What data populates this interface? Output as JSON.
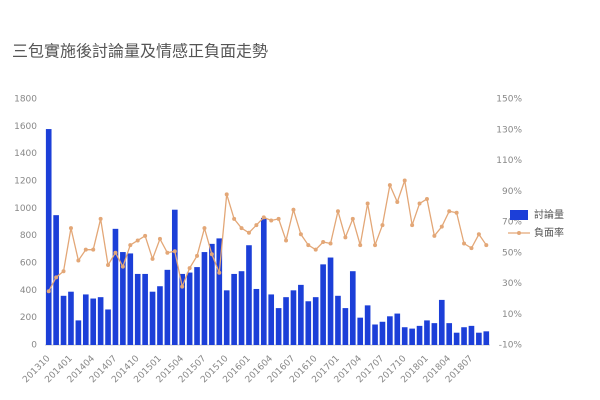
{
  "chart_data": {
    "type": "bar",
    "title": "三包實施後討論量及情感正負面走勢",
    "categories": [
      "201310",
      null,
      null,
      "201401",
      null,
      null,
      "201404",
      null,
      null,
      "201407",
      null,
      null,
      "201410",
      null,
      null,
      "201501",
      null,
      null,
      "201504",
      null,
      null,
      "201507",
      null,
      null,
      "201510",
      null,
      null,
      "201601",
      null,
      null,
      "201604",
      null,
      null,
      "201607",
      null,
      null,
      "201610",
      null,
      null,
      "201701",
      null,
      null,
      "201704",
      null,
      null,
      "201707",
      null,
      null,
      "201710",
      null,
      null,
      "201801",
      null,
      null,
      "201804",
      null,
      null,
      "201807",
      null,
      null
    ],
    "series": [
      {
        "name": "討論量",
        "type": "bar",
        "color": "#1c3fd8",
        "values": [
          1580,
          950,
          360,
          390,
          180,
          370,
          340,
          350,
          260,
          850,
          680,
          670,
          520,
          520,
          390,
          430,
          550,
          990,
          520,
          530,
          570,
          680,
          740,
          780,
          400,
          520,
          540,
          730,
          410,
          930,
          370,
          270,
          350,
          400,
          440,
          320,
          350,
          590,
          640,
          360,
          270,
          540,
          200,
          290,
          150,
          170,
          210,
          230,
          130,
          120,
          140,
          180,
          160,
          330,
          160,
          90,
          130,
          140,
          90,
          100
        ]
      },
      {
        "name": "負面率",
        "type": "line",
        "axis": "y2",
        "color": "#e3a777",
        "values": [
          25,
          34,
          38,
          66,
          45,
          52,
          52,
          72,
          42,
          50,
          41,
          55,
          58,
          61,
          46,
          59,
          50,
          51,
          28,
          40,
          48,
          66,
          49,
          37,
          88,
          72,
          66,
          63,
          68,
          73,
          71,
          72,
          58,
          78,
          62,
          55,
          52,
          57,
          56,
          77,
          60,
          72,
          55,
          82,
          55,
          68,
          94,
          83,
          97,
          68,
          82,
          85,
          61,
          67,
          77,
          76,
          56,
          53,
          62,
          55
        ]
      }
    ],
    "ylim": [
      0,
      1800
    ],
    "yticks": [
      0,
      200,
      400,
      600,
      800,
      1000,
      1200,
      1400,
      1600,
      1800
    ],
    "y2lim": [
      -10,
      150
    ],
    "y2ticks": [
      {
        "value": -10,
        "label": "-10%"
      },
      {
        "value": 10,
        "label": "10%"
      },
      {
        "value": 30,
        "label": "30%"
      },
      {
        "value": 50,
        "label": "50%"
      },
      {
        "value": 70,
        "label": "70%"
      },
      {
        "value": 90,
        "label": "90%"
      },
      {
        "value": 110,
        "label": "110%"
      },
      {
        "value": 130,
        "label": "130%"
      },
      {
        "value": 150,
        "label": "150%"
      }
    ],
    "grid": false,
    "legend": "right"
  }
}
